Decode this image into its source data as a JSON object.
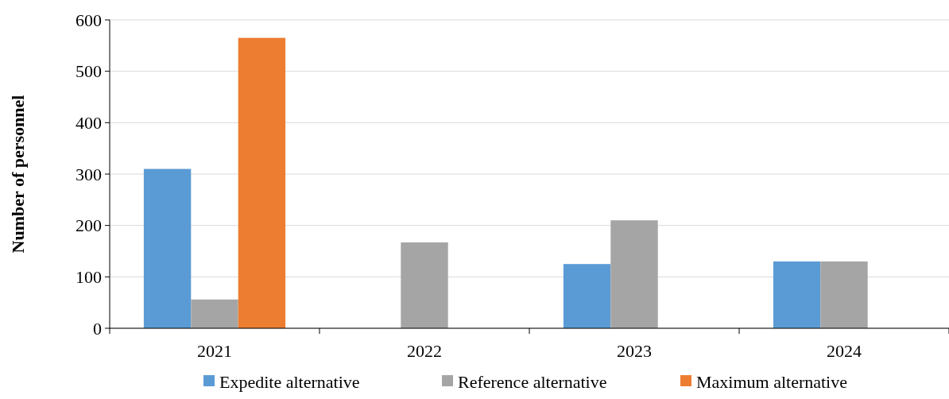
{
  "chart_data": {
    "type": "bar",
    "ylabel": "Number of personnel",
    "categories": [
      "2021",
      "2022",
      "2023",
      "2024"
    ],
    "series": [
      {
        "name": "Expedite alternative",
        "color": "#5b9bd5",
        "values": [
          310,
          0,
          125,
          130
        ]
      },
      {
        "name": "Reference alternative",
        "color": "#a5a5a5",
        "values": [
          56,
          167,
          210,
          130
        ]
      },
      {
        "name": "Maximum alternative",
        "color": "#ed7d31",
        "values": [
          565,
          0,
          0,
          0
        ]
      }
    ],
    "ylim": [
      0,
      600
    ],
    "yticks": [
      0,
      100,
      200,
      300,
      400,
      500,
      600
    ],
    "grid": "y",
    "legend": "bottom"
  }
}
